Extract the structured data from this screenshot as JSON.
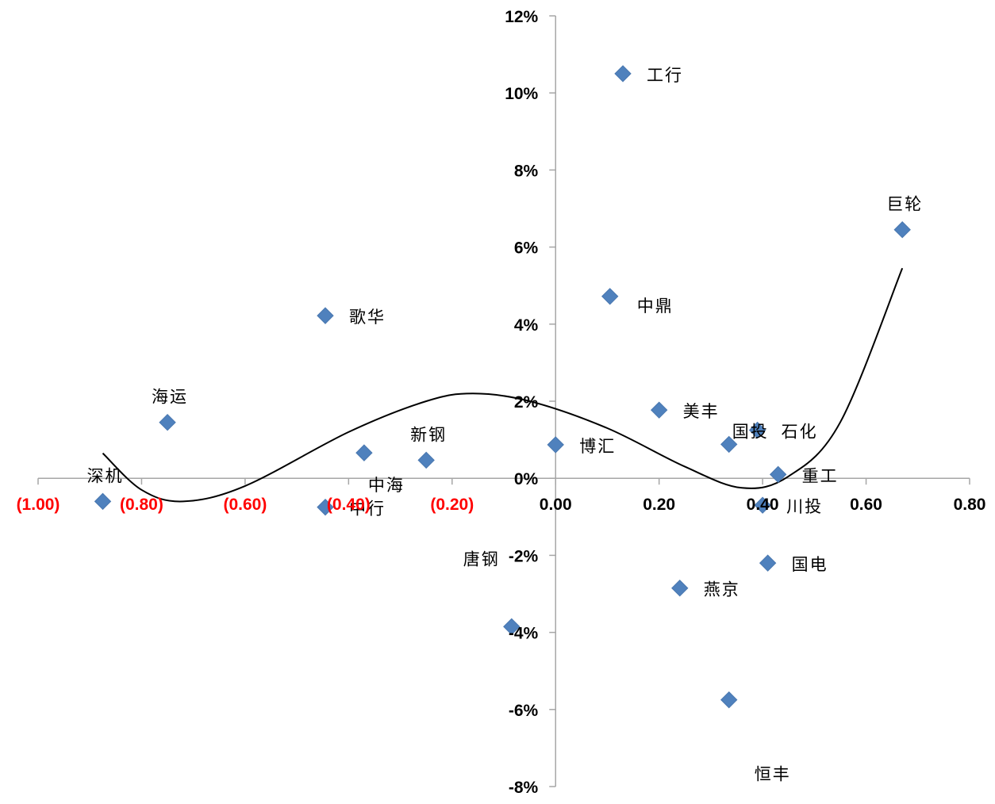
{
  "chart_data": {
    "type": "scatter",
    "title": "",
    "xlabel": "",
    "ylabel": "",
    "xlim": [
      -1.0,
      0.8
    ],
    "ylim": [
      -8,
      12
    ],
    "y_unit": "%",
    "grid": false,
    "legend": "none",
    "marker_color": "#4F81BD",
    "negative_tick_color": "#FF0000",
    "positive_tick_color": "#000000",
    "x_ticks": [
      {
        "value": -1.0,
        "label": "(1.00)"
      },
      {
        "value": -0.8,
        "label": "(0.80)"
      },
      {
        "value": -0.6,
        "label": "(0.60)"
      },
      {
        "value": -0.4,
        "label": "(0.40)"
      },
      {
        "value": -0.2,
        "label": "(0.20)"
      },
      {
        "value": 0.0,
        "label": "0.00"
      },
      {
        "value": 0.2,
        "label": "0.20"
      },
      {
        "value": 0.4,
        "label": "0.40"
      },
      {
        "value": 0.6,
        "label": "0.60"
      },
      {
        "value": 0.8,
        "label": "0.80"
      }
    ],
    "y_ticks": [
      {
        "value": 12,
        "label": "12%"
      },
      {
        "value": 10,
        "label": "10%"
      },
      {
        "value": 8,
        "label": "8%"
      },
      {
        "value": 6,
        "label": "6%"
      },
      {
        "value": 4,
        "label": "4%"
      },
      {
        "value": 2,
        "label": "2%"
      },
      {
        "value": 0,
        "label": "0%"
      },
      {
        "value": -2,
        "label": "-2%"
      },
      {
        "value": -4,
        "label": "-4%"
      },
      {
        "value": -6,
        "label": "-6%"
      },
      {
        "value": -8,
        "label": "-8%"
      }
    ],
    "points": [
      {
        "label": "工行",
        "x": 0.13,
        "y": 10.5,
        "anchor": "right"
      },
      {
        "label": "巨轮",
        "x": 0.67,
        "y": 6.45,
        "anchor": "above"
      },
      {
        "label": "中鼎",
        "x": 0.105,
        "y": 4.72,
        "anchor": "right-low"
      },
      {
        "label": "歌华",
        "x": -0.445,
        "y": 4.22,
        "anchor": "right"
      },
      {
        "label": "海运",
        "x": -0.75,
        "y": 1.45,
        "anchor": "above"
      },
      {
        "label": "美丰",
        "x": 0.2,
        "y": 1.77,
        "anchor": "right"
      },
      {
        "label": "国投",
        "x": 0.335,
        "y": 0.88,
        "anchor": "above-right"
      },
      {
        "label": "石化",
        "x": 0.39,
        "y": 1.25,
        "anchor": "right"
      },
      {
        "label": "博汇",
        "x": 0.0,
        "y": 0.87,
        "anchor": "right"
      },
      {
        "label": "新钢",
        "x": -0.25,
        "y": 0.47,
        "anchor": "above"
      },
      {
        "label": "中海",
        "x": -0.37,
        "y": 0.66,
        "anchor": "below"
      },
      {
        "label": "重工",
        "x": 0.43,
        "y": 0.1,
        "anchor": "right"
      },
      {
        "label": "深机",
        "x": -0.875,
        "y": -0.6,
        "anchor": "above"
      },
      {
        "label": "中行",
        "x": -0.445,
        "y": -0.75,
        "anchor": "right"
      },
      {
        "label": "川投",
        "x": 0.4,
        "y": -0.7,
        "anchor": "right"
      },
      {
        "label": "国电",
        "x": 0.41,
        "y": -2.2,
        "anchor": "right"
      },
      {
        "label": "燕京",
        "x": 0.24,
        "y": -2.85,
        "anchor": "right"
      },
      {
        "label": "唐钢",
        "x": -0.085,
        "y": -3.85,
        "anchor": "above-left"
      },
      {
        "label": "恒丰",
        "x": 0.335,
        "y": -5.75,
        "anchor": "far-below"
      }
    ],
    "trendline": {
      "type": "polynomial",
      "x_range": [
        -0.875,
        0.67
      ],
      "samples": [
        [
          -0.875,
          0.65
        ],
        [
          -0.8,
          -0.3
        ],
        [
          -0.72,
          -0.6
        ],
        [
          -0.6,
          -0.2
        ],
        [
          -0.4,
          1.2
        ],
        [
          -0.25,
          2.0
        ],
        [
          -0.16,
          2.2
        ],
        [
          -0.05,
          2.0
        ],
        [
          0.1,
          1.3
        ],
        [
          0.25,
          0.3
        ],
        [
          0.36,
          -0.25
        ],
        [
          0.45,
          0.05
        ],
        [
          0.55,
          1.45
        ],
        [
          0.67,
          5.45
        ]
      ]
    }
  }
}
